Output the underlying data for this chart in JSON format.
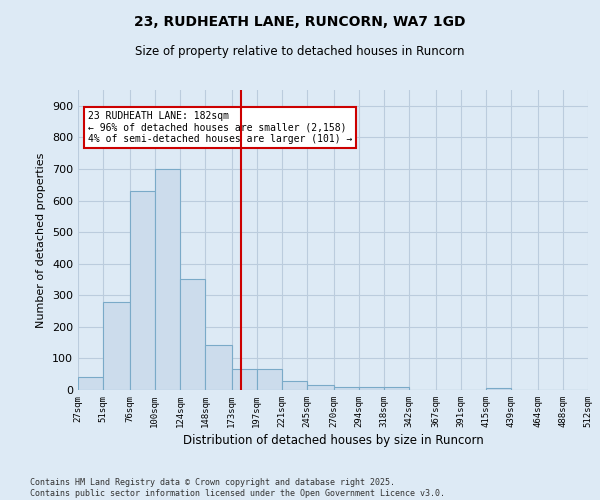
{
  "title1": "23, RUDHEATH LANE, RUNCORN, WA7 1GD",
  "title2": "Size of property relative to detached houses in Runcorn",
  "xlabel": "Distribution of detached houses by size in Runcorn",
  "ylabel": "Number of detached properties",
  "bar_color": "#ccdcec",
  "bar_edge_color": "#7aaac8",
  "bg_color": "#ddeaf5",
  "grid_color": "#bbccdd",
  "vline_x": 182,
  "vline_color": "#cc0000",
  "annotation_text": "23 RUDHEATH LANE: 182sqm\n← 96% of detached houses are smaller (2,158)\n4% of semi-detached houses are larger (101) →",
  "annotation_box_color": "#ffffff",
  "annotation_box_edge": "#cc0000",
  "footnote": "Contains HM Land Registry data © Crown copyright and database right 2025.\nContains public sector information licensed under the Open Government Licence v3.0.",
  "bins": [
    27,
    51,
    76,
    100,
    124,
    148,
    173,
    197,
    221,
    245,
    270,
    294,
    318,
    342,
    367,
    391,
    415,
    439,
    464,
    488,
    512
  ],
  "values": [
    40,
    280,
    630,
    700,
    350,
    143,
    65,
    65,
    27,
    15,
    10,
    10,
    10,
    0,
    0,
    0,
    5,
    0,
    0,
    0
  ],
  "ylim": [
    0,
    950
  ],
  "yticks": [
    0,
    100,
    200,
    300,
    400,
    500,
    600,
    700,
    800,
    900
  ]
}
